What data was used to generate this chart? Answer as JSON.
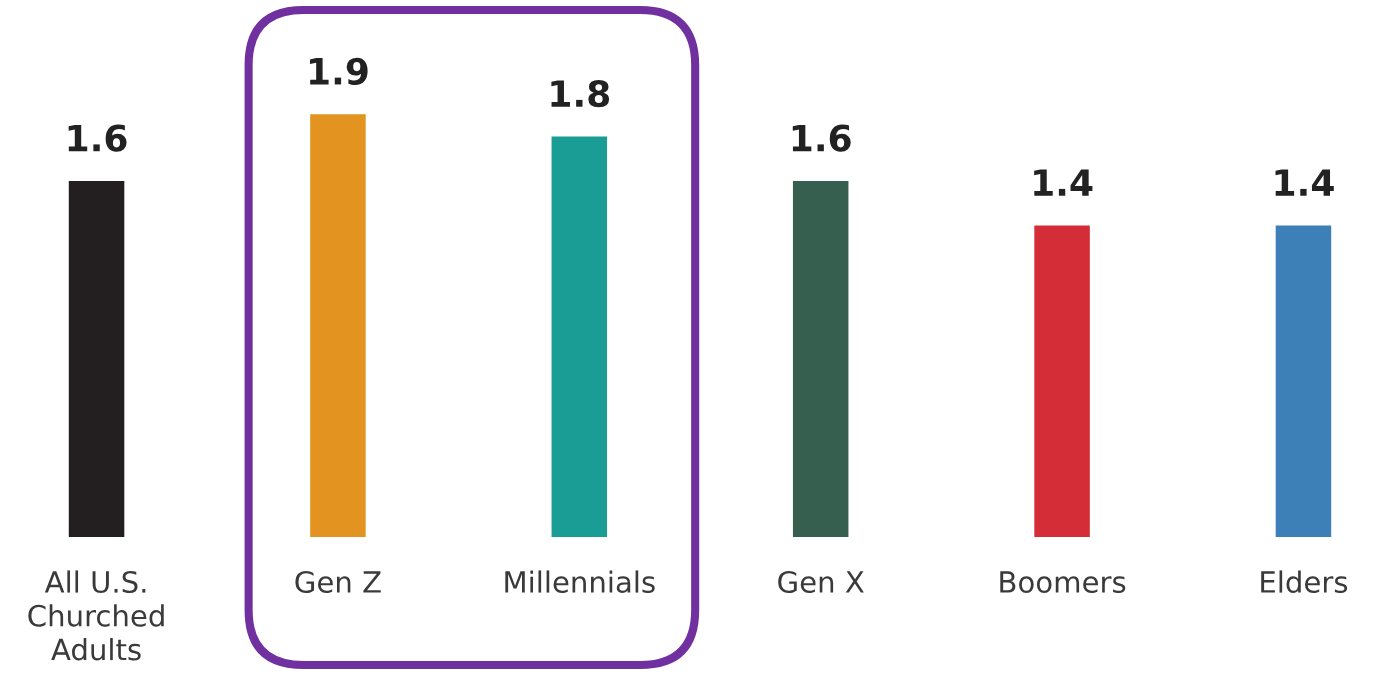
{
  "chart_data": {
    "type": "bar",
    "categories": [
      "All U.S.\nChurched\nAdults",
      "Gen Z",
      "Millennials",
      "Gen X",
      "Boomers",
      "Elders"
    ],
    "values": [
      1.6,
      1.9,
      1.8,
      1.6,
      1.4,
      1.4
    ],
    "colors": [
      "#231f20",
      "#e3931f",
      "#1a9d94",
      "#365f50",
      "#d42d37",
      "#3d80b8"
    ],
    "data_labels": true,
    "tick_labels": "x"
  }
}
